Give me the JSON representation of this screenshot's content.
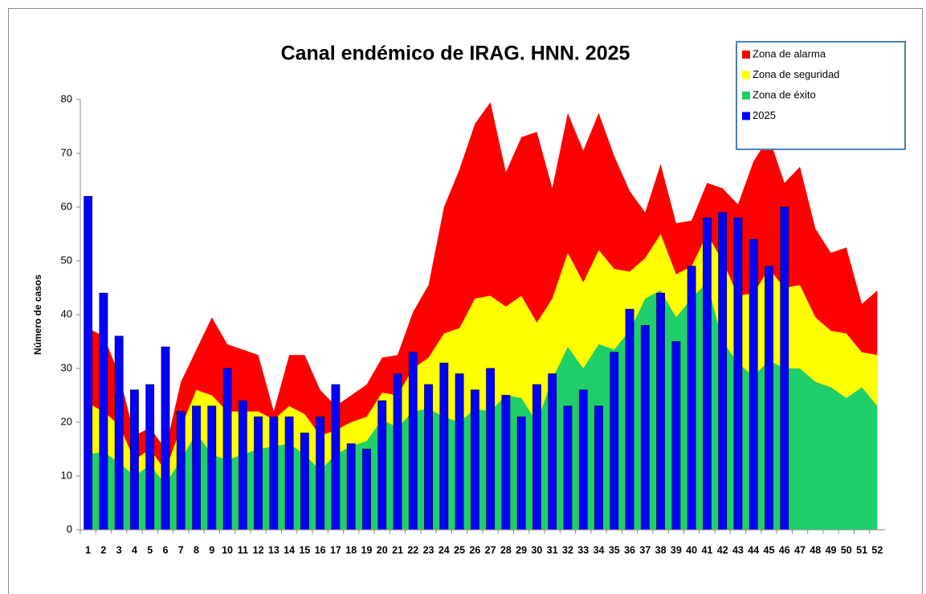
{
  "chart_data": {
    "type": "endemic-channel",
    "title": "Canal endémico de IRAG. HNN. 2025",
    "y_label": "Número de casos",
    "categories": [
      "1",
      "2",
      "3",
      "4",
      "5",
      "6",
      "7",
      "8",
      "9",
      "10",
      "11",
      "12",
      "13",
      "14",
      "15",
      "16",
      "17",
      "18",
      "19",
      "20",
      "21",
      "22",
      "23",
      "24",
      "25",
      "26",
      "27",
      "28",
      "29",
      "30",
      "31",
      "32",
      "33",
      "34",
      "35",
      "36",
      "37",
      "38",
      "39",
      "40",
      "41",
      "42",
      "43",
      "44",
      "45",
      "46",
      "47",
      "48",
      "49",
      "50",
      "51",
      "52"
    ],
    "ylim": [
      0,
      80
    ],
    "yticks": [
      0,
      10,
      20,
      30,
      40,
      50,
      60,
      70,
      80
    ],
    "legend": "top-right",
    "series": [
      {
        "name": "Zona de alarma",
        "kind": "area",
        "color": "#ff0000",
        "values": [
          37.5,
          36,
          29,
          17.5,
          19,
          15,
          27.5,
          33.5,
          39.5,
          34.5,
          33.5,
          32.5,
          22,
          32.5,
          32.5,
          26,
          23,
          25,
          27,
          32,
          32.5,
          40.5,
          45.5,
          60,
          67,
          75.5,
          79.5,
          66.5,
          73,
          74,
          63.5,
          77.5,
          70.5,
          77.5,
          69.5,
          63,
          59,
          68,
          57,
          57.5,
          64.5,
          63.5,
          60.5,
          68.5,
          73,
          64.5,
          67.5,
          56,
          51.5,
          52.5,
          42,
          44.5
        ]
      },
      {
        "name": "Zona de seguridad",
        "kind": "area",
        "color": "#ffff00",
        "values": [
          23.5,
          22,
          19.5,
          13,
          15,
          11,
          19,
          26,
          25,
          22,
          22,
          22,
          20.5,
          23,
          21.5,
          17.5,
          18.5,
          20,
          21,
          25.5,
          25,
          30,
          32,
          36.5,
          37.5,
          43,
          43.5,
          41.5,
          43.5,
          38.5,
          43,
          51.5,
          46,
          52,
          48.5,
          48,
          50.5,
          55,
          47.5,
          49,
          55,
          50,
          43.5,
          44,
          48.5,
          45,
          45.5,
          39.5,
          37,
          36.5,
          33,
          32.5
        ]
      },
      {
        "name": "Zona de éxito",
        "kind": "area",
        "color": "#1fcf6a",
        "values": [
          14,
          14.5,
          12.5,
          10,
          12,
          8.5,
          13,
          18,
          14,
          13,
          14,
          15,
          15.5,
          16,
          14,
          11,
          14,
          15.5,
          16.5,
          20.5,
          19,
          22,
          22.5,
          21,
          20,
          22.5,
          22,
          25,
          24.5,
          20,
          28,
          34,
          30,
          34.5,
          33.5,
          37,
          43,
          44.5,
          39.5,
          43,
          46,
          35,
          31,
          28.5,
          31.5,
          30,
          30,
          27.5,
          26.5,
          24.5,
          26.5,
          23
        ]
      },
      {
        "name": "2025",
        "kind": "bar",
        "color": "#0000ff",
        "values": [
          62,
          44,
          36,
          26,
          27,
          34,
          22,
          23,
          23,
          30,
          24,
          21,
          21,
          21,
          18,
          21,
          27,
          16,
          15,
          24,
          29,
          33,
          27,
          31,
          29,
          26,
          30,
          25,
          21,
          27,
          29,
          23,
          26,
          23,
          33,
          41,
          38,
          44,
          35,
          49,
          58,
          59,
          58,
          54,
          49,
          60,
          null,
          null,
          null,
          null,
          null,
          null
        ]
      }
    ]
  }
}
